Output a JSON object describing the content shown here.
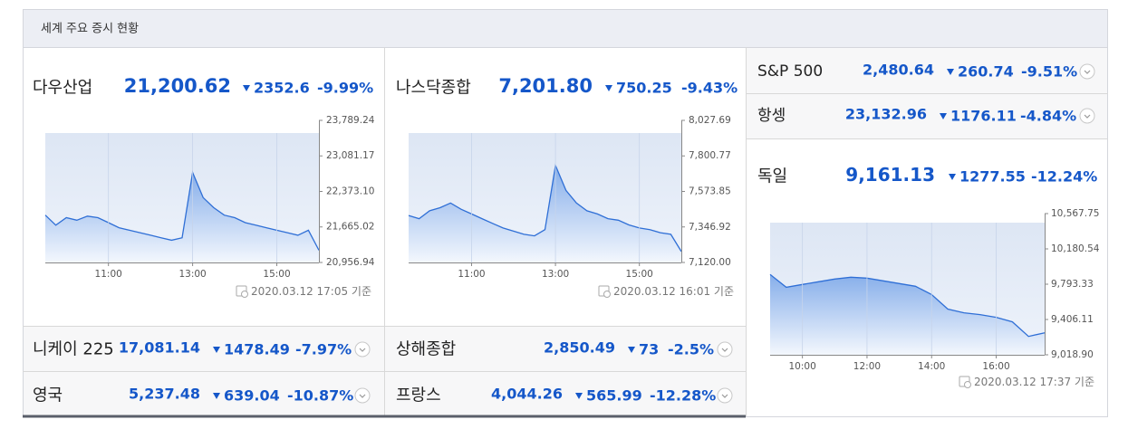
{
  "header": {
    "title": "세계 주요 증시 현황"
  },
  "indices": [
    {
      "name": "다우산업",
      "price": "21,200.62",
      "change": "2352.6",
      "rate": "-9.99%",
      "updated": "2020.03.12 17:05 기준",
      "chart": {
        "type": "area",
        "color": "#2f6fd6",
        "x": [
          9.5,
          9.75,
          10,
          10.25,
          10.5,
          10.75,
          11,
          11.25,
          11.5,
          11.75,
          12,
          12.25,
          12.5,
          12.75,
          13,
          13.25,
          13.5,
          13.75,
          14,
          14.25,
          14.5,
          14.75,
          15,
          15.25,
          15.5,
          15.75,
          16
        ],
        "values": [
          21900,
          21700,
          21850,
          21800,
          21880,
          21850,
          21750,
          21650,
          21600,
          21550,
          21500,
          21450,
          21400,
          21450,
          22750,
          22250,
          22050,
          21900,
          21850,
          21750,
          21700,
          21650,
          21600,
          21550,
          21500,
          21600,
          21200
        ],
        "xlim": [
          9.5,
          16
        ],
        "ylim": [
          20956.94,
          23789.24
        ],
        "xticks": [
          {
            "value": 11,
            "label": "11:00"
          },
          {
            "value": 13,
            "label": "13:00"
          },
          {
            "value": 15,
            "label": "15:00"
          }
        ],
        "yticks": [
          {
            "value": 23789.24,
            "label": "23,789.24"
          },
          {
            "value": 23081.17,
            "label": "23,081.17"
          },
          {
            "value": 22373.1,
            "label": "22,373.10"
          },
          {
            "value": 21665.02,
            "label": "21,665.02"
          },
          {
            "value": 20956.94,
            "label": "20,956.94"
          }
        ]
      }
    },
    {
      "name": "나스닥종합",
      "price": "7,201.80",
      "change": "750.25",
      "rate": "-9.43%",
      "updated": "2020.03.12 16:01 기준",
      "chart": {
        "type": "area",
        "color": "#2f6fd6",
        "x": [
          9.5,
          9.75,
          10,
          10.25,
          10.5,
          10.75,
          11,
          11.25,
          11.5,
          11.75,
          12,
          12.25,
          12.5,
          12.75,
          13,
          13.25,
          13.5,
          13.75,
          14,
          14.25,
          14.5,
          14.75,
          15,
          15.25,
          15.5,
          15.75,
          16
        ],
        "values": [
          7420,
          7400,
          7450,
          7470,
          7500,
          7460,
          7430,
          7400,
          7370,
          7340,
          7320,
          7300,
          7290,
          7330,
          7740,
          7580,
          7500,
          7450,
          7430,
          7400,
          7390,
          7360,
          7340,
          7330,
          7310,
          7300,
          7190
        ],
        "xlim": [
          9.5,
          16
        ],
        "ylim": [
          7120.0,
          8027.69
        ],
        "xticks": [
          {
            "value": 11,
            "label": "11:00"
          },
          {
            "value": 13,
            "label": "13:00"
          },
          {
            "value": 15,
            "label": "15:00"
          }
        ],
        "yticks": [
          {
            "value": 8027.69,
            "label": "8,027.69"
          },
          {
            "value": 7800.77,
            "label": "7,800.77"
          },
          {
            "value": 7573.85,
            "label": "7,573.85"
          },
          {
            "value": 7346.92,
            "label": "7,346.92"
          },
          {
            "value": 7120.0,
            "label": "7,120.00"
          }
        ]
      }
    },
    {
      "name": "S&P 500",
      "price": "2,480.64",
      "change": "260.74",
      "rate": "-9.51%"
    },
    {
      "name": "항셍",
      "price": "23,132.96",
      "change": "1176.11",
      "rate": "-4.84%"
    },
    {
      "name": "독일",
      "price": "9,161.13",
      "change": "1277.55",
      "rate": "-12.24%",
      "updated": "2020.03.12 17:37 기준",
      "chart": {
        "type": "area",
        "color": "#2f6fd6",
        "x": [
          9,
          9.5,
          10,
          10.5,
          11,
          11.5,
          12,
          12.5,
          13,
          13.5,
          14,
          14.5,
          15,
          15.5,
          16,
          16.5,
          17,
          17.5
        ],
        "values": [
          9900,
          9760,
          9790,
          9820,
          9850,
          9870,
          9860,
          9830,
          9800,
          9770,
          9680,
          9520,
          9480,
          9460,
          9430,
          9380,
          9220,
          9260
        ],
        "xlim": [
          9,
          17.5
        ],
        "ylim": [
          9018.9,
          10567.75
        ],
        "xticks": [
          {
            "value": 10,
            "label": "10:00"
          },
          {
            "value": 12,
            "label": "12:00"
          },
          {
            "value": 14,
            "label": "14:00"
          },
          {
            "value": 16,
            "label": "16:00"
          }
        ],
        "yticks": [
          {
            "value": 10567.75,
            "label": "10,567.75"
          },
          {
            "value": 10180.54,
            "label": "10,180.54"
          },
          {
            "value": 9793.33,
            "label": "9,793.33"
          },
          {
            "value": 9406.11,
            "label": "9,406.11"
          },
          {
            "value": 9018.9,
            "label": "9,018.90"
          }
        ]
      }
    },
    {
      "name": "니케이 225",
      "price": "17,081.14",
      "change": "1478.49",
      "rate": "-7.97%"
    },
    {
      "name": "상해종합",
      "price": "2,850.49",
      "change": "73",
      "rate": "-2.5%"
    },
    {
      "name": "영국",
      "price": "5,237.48",
      "change": "639.04",
      "rate": "-10.87%"
    },
    {
      "name": "프랑스",
      "price": "4,044.26",
      "change": "565.99",
      "rate": "-12.28%"
    }
  ]
}
